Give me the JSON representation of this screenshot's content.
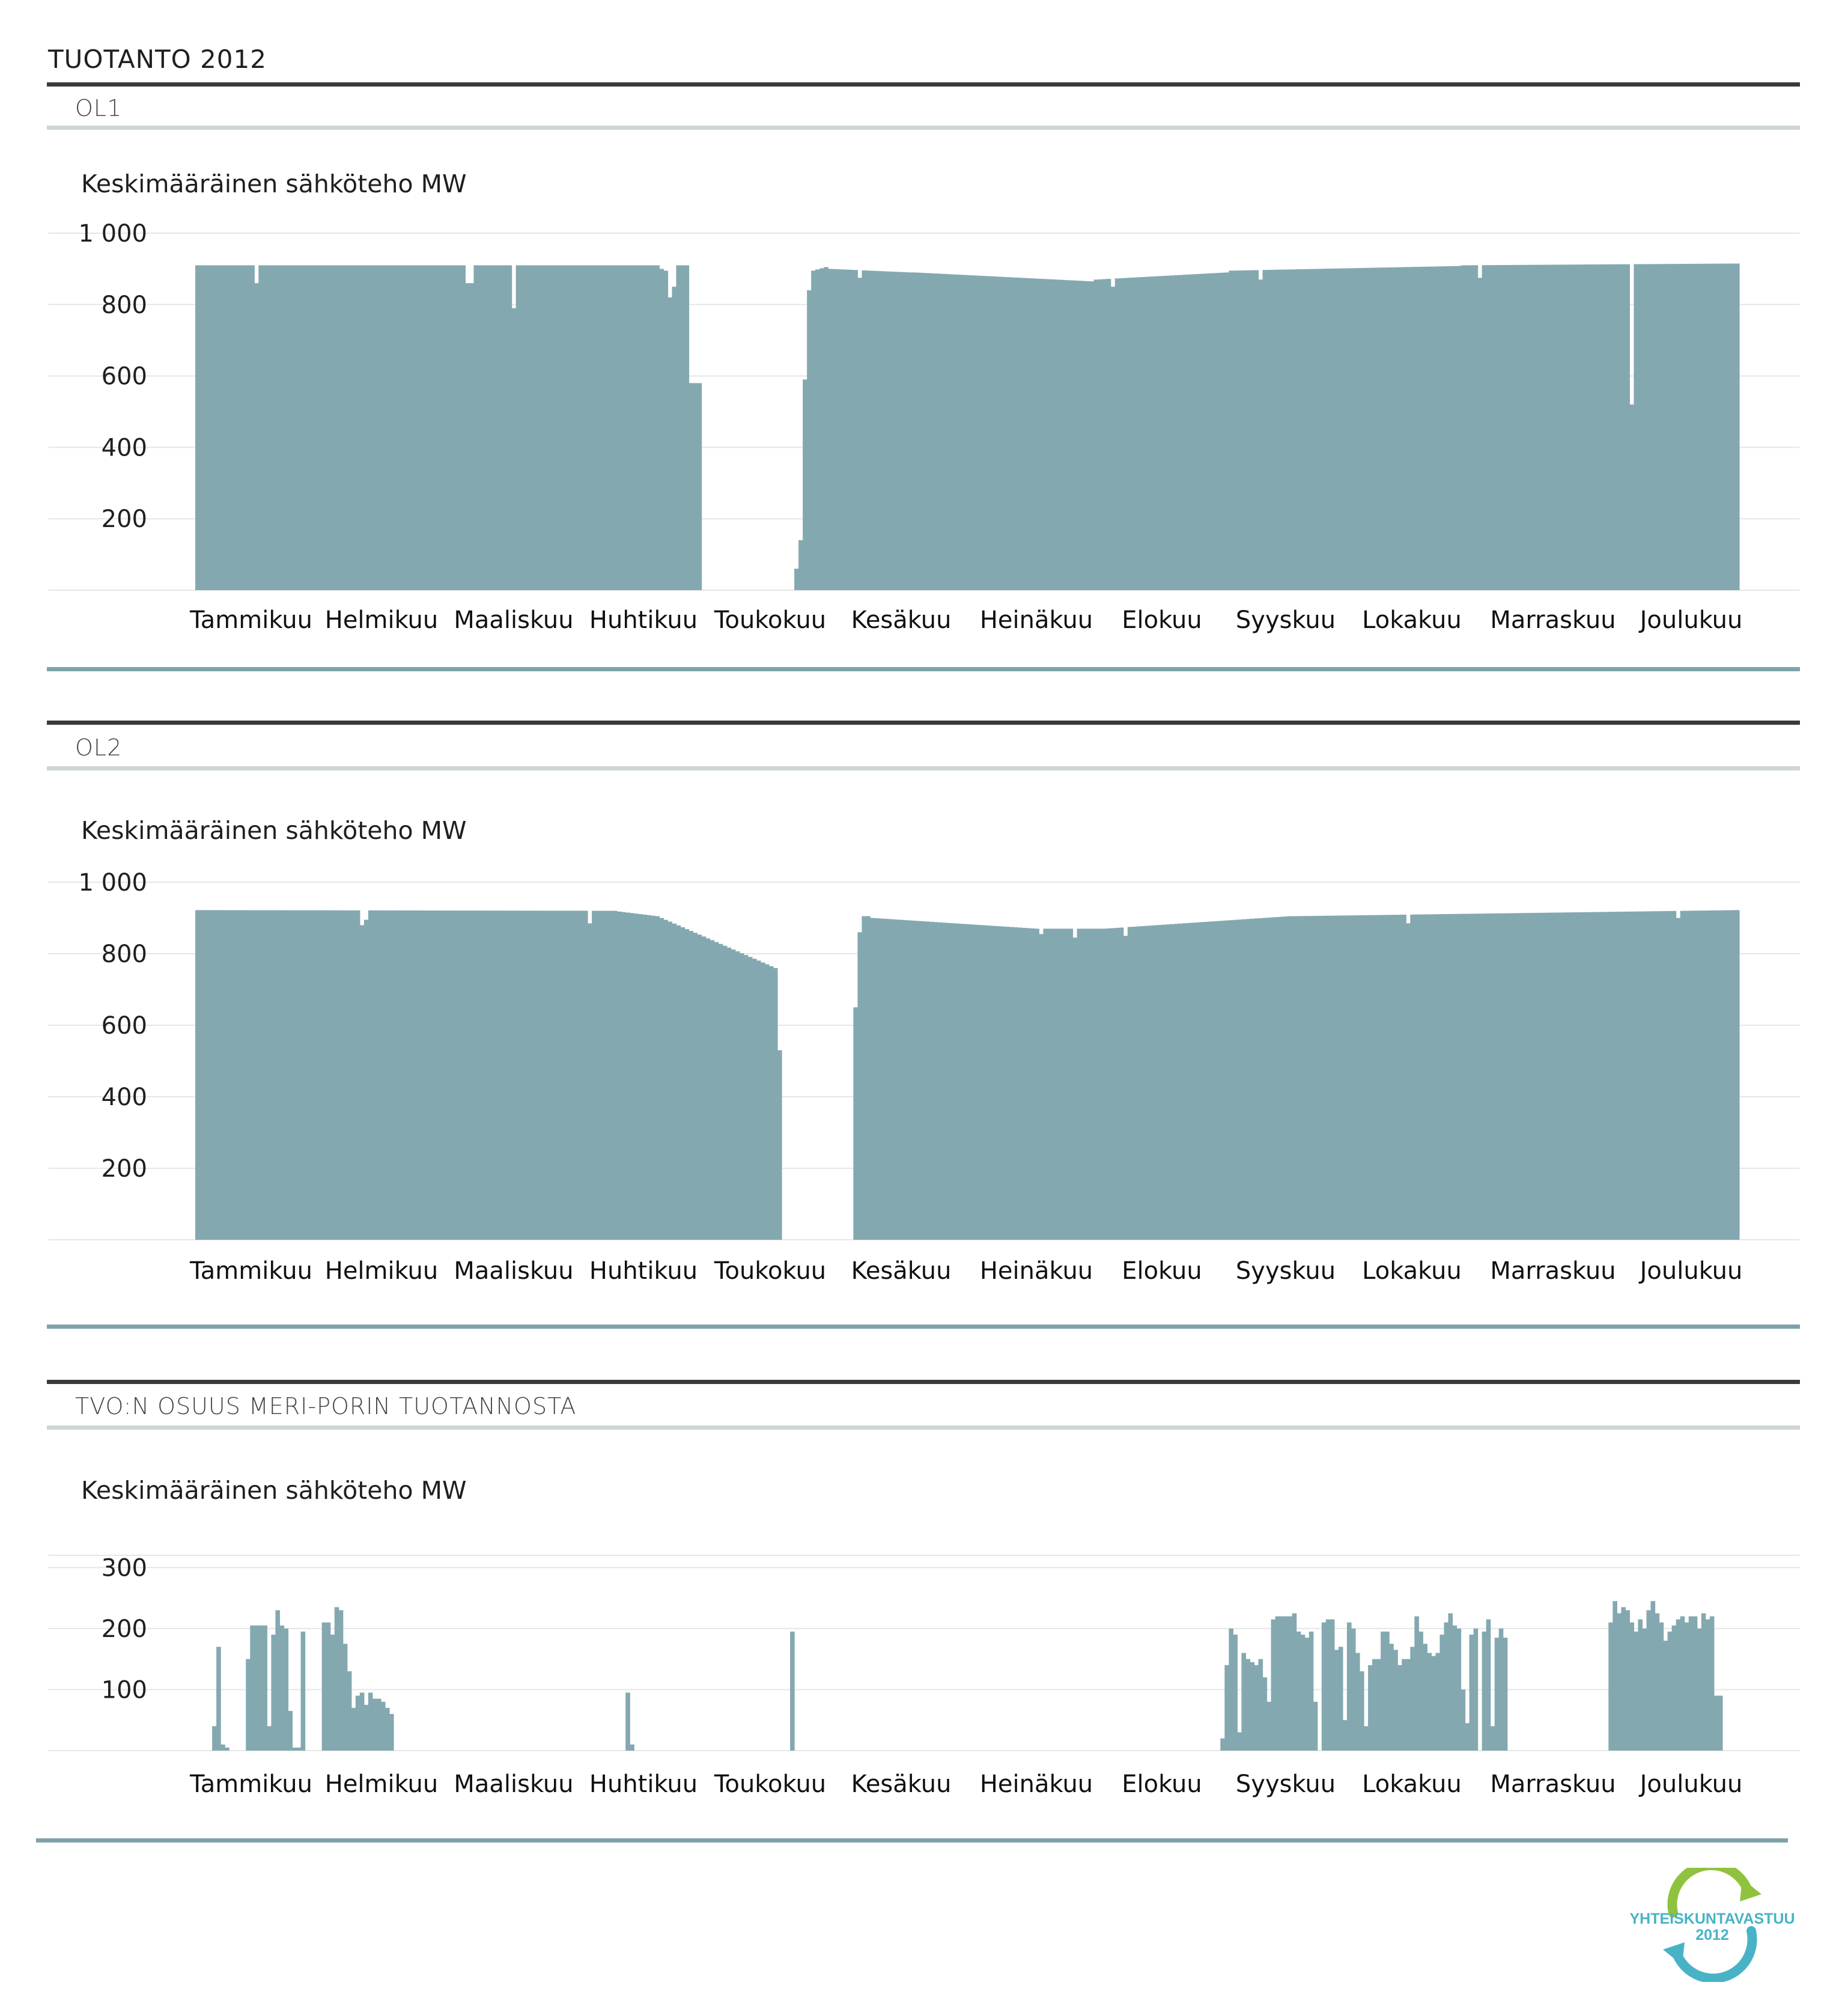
{
  "page": {
    "title": "TUOTANTO 2012"
  },
  "colors": {
    "bar": "#84a8b0",
    "grid": "#e4e7e6",
    "rule_dark": "#3a3a3a",
    "rule_green": "#cdd6d0",
    "rule_blue": "#7fa2aa",
    "logo_green": "#8fc23e",
    "logo_blue": "#48b3c6"
  },
  "logo": {
    "line1": "YHTEISKUNTAVASTUU",
    "line2": "2012"
  },
  "months": [
    "Tammikuu",
    "Helmikuu",
    "Maaliskuu",
    "Huhtikuu",
    "Toukokuu",
    "Kesäkuu",
    "Heinäkuu",
    "Elokuu",
    "Syyskuu",
    "Lokakuu",
    "Marraskuu",
    "Joulukuu"
  ],
  "panels": [
    {
      "label": "OL1",
      "ylabel": "Keskimääräinen sähköteho MW",
      "chart_data": {
        "type": "bar",
        "x_unit": "day of year 2012",
        "x_range": [
          1,
          366
        ],
        "ylim": [
          0,
          1000
        ],
        "yticks": [
          200,
          400,
          600,
          800,
          1000
        ],
        "ytick_labels": [
          "200",
          "400",
          "600",
          "800",
          "1 000"
        ],
        "grid": true,
        "series": [
          {
            "segments": [
              {
                "from": 1,
                "to": 120,
                "start": 910,
                "end": 910
              },
              {
                "from": 121,
                "to": 142,
                "start": 0,
                "end": 0
              },
              {
                "from": 143,
                "to": 143,
                "start": 60,
                "end": 60
              },
              {
                "from": 144,
                "to": 144,
                "start": 140,
                "end": 140
              },
              {
                "from": 145,
                "to": 145,
                "start": 590,
                "end": 590
              },
              {
                "from": 146,
                "to": 146,
                "start": 840,
                "end": 840
              },
              {
                "from": 147,
                "to": 150,
                "start": 895,
                "end": 905
              },
              {
                "from": 151,
                "to": 170,
                "start": 900,
                "end": 890
              },
              {
                "from": 171,
                "to": 213,
                "start": 890,
                "end": 865
              },
              {
                "from": 214,
                "to": 245,
                "start": 870,
                "end": 890
              },
              {
                "from": 246,
                "to": 300,
                "start": 895,
                "end": 908
              },
              {
                "from": 301,
                "to": 366,
                "start": 910,
                "end": 915
              }
            ],
            "dips": [
              {
                "day": 15,
                "value": 860
              },
              {
                "day": 65,
                "value": 860
              },
              {
                "day": 66,
                "value": 860
              },
              {
                "day": 76,
                "value": 790
              },
              {
                "day": 111,
                "value": 900
              },
              {
                "day": 112,
                "value": 895
              },
              {
                "day": 113,
                "value": 820
              },
              {
                "day": 114,
                "value": 850
              },
              {
                "day": 115,
                "value": 910
              },
              {
                "day": 116,
                "value": 910
              },
              {
                "day": 117,
                "value": 910
              },
              {
                "day": 118,
                "value": 580
              },
              {
                "day": 119,
                "value": 580
              },
              {
                "day": 120,
                "value": 580
              },
              {
                "day": 158,
                "value": 875
              },
              {
                "day": 218,
                "value": 850
              },
              {
                "day": 253,
                "value": 870
              },
              {
                "day": 305,
                "value": 875
              },
              {
                "day": 341,
                "value": 520
              }
            ]
          }
        ]
      }
    },
    {
      "label": "OL2",
      "ylabel": "Keskimääräinen sähköteho MW",
      "chart_data": {
        "type": "bar",
        "x_unit": "day of year 2012",
        "x_range": [
          1,
          366
        ],
        "ylim": [
          0,
          1000
        ],
        "yticks": [
          200,
          400,
          600,
          800,
          1000
        ],
        "ytick_labels": [
          "200",
          "400",
          "600",
          "800",
          "1 000"
        ],
        "grid": true,
        "series": [
          {
            "segments": [
              {
                "from": 1,
                "to": 100,
                "start": 922,
                "end": 920
              },
              {
                "from": 101,
                "to": 110,
                "start": 918,
                "end": 905
              },
              {
                "from": 111,
                "to": 138,
                "start": 900,
                "end": 760
              },
              {
                "from": 139,
                "to": 139,
                "start": 530,
                "end": 530
              },
              {
                "from": 140,
                "to": 156,
                "start": 0,
                "end": 0
              },
              {
                "from": 157,
                "to": 157,
                "start": 650,
                "end": 650
              },
              {
                "from": 158,
                "to": 158,
                "start": 860,
                "end": 860
              },
              {
                "from": 159,
                "to": 160,
                "start": 905,
                "end": 905
              },
              {
                "from": 161,
                "to": 200,
                "start": 900,
                "end": 870
              },
              {
                "from": 201,
                "to": 215,
                "start": 870,
                "end": 870
              },
              {
                "from": 216,
                "to": 260,
                "start": 870,
                "end": 905
              },
              {
                "from": 261,
                "to": 366,
                "start": 905,
                "end": 922
              }
            ],
            "dips": [
              {
                "day": 40,
                "value": 880
              },
              {
                "day": 41,
                "value": 895
              },
              {
                "day": 94,
                "value": 885
              },
              {
                "day": 201,
                "value": 855
              },
              {
                "day": 209,
                "value": 845
              },
              {
                "day": 221,
                "value": 850
              },
              {
                "day": 288,
                "value": 885
              },
              {
                "day": 352,
                "value": 900
              }
            ]
          }
        ]
      }
    },
    {
      "label": "TVO:N OSUUS MERI-PORIN TUOTANNOSTA",
      "ylabel": "Keskimääräinen sähköteho MW",
      "chart_data": {
        "type": "bar",
        "x_unit": "day of year 2012",
        "x_range": [
          1,
          366
        ],
        "ylim": [
          0,
          320
        ],
        "yticks": [
          100,
          200,
          300
        ],
        "ytick_labels": [
          "100",
          "200",
          "300"
        ],
        "grid": true,
        "series": [
          {
            "days": [
              5,
              6,
              7,
              8,
              13,
              14,
              15,
              16,
              17,
              18,
              19,
              20,
              21,
              22,
              23,
              24,
              25,
              26,
              31,
              32,
              33,
              34,
              35,
              36,
              37,
              38,
              39,
              40,
              41,
              42,
              43,
              44,
              45,
              46,
              47,
              103,
              104,
              142,
              244,
              245,
              246,
              247,
              248,
              249,
              250,
              251,
              252,
              253,
              254,
              255,
              256,
              257,
              258,
              259,
              260,
              261,
              262,
              263,
              264,
              265,
              266,
              267,
              268,
              269,
              270,
              271,
              272,
              273,
              274,
              275,
              276,
              277,
              278,
              279,
              280,
              281,
              282,
              283,
              284,
              285,
              286,
              287,
              288,
              289,
              290,
              291,
              292,
              293,
              294,
              295,
              296,
              297,
              298,
              299,
              300,
              301,
              302,
              303,
              304,
              305,
              306,
              307,
              308,
              309,
              310,
              311,
              336,
              337,
              338,
              339,
              340,
              341,
              342,
              343,
              344,
              345,
              346,
              347,
              348,
              349,
              350,
              351,
              352,
              353,
              354,
              355,
              356,
              357,
              358,
              359,
              360,
              361,
              362
            ],
            "values": [
              40,
              170,
              10,
              5,
              150,
              205,
              205,
              205,
              205,
              40,
              190,
              230,
              205,
              200,
              65,
              5,
              5,
              195,
              210,
              210,
              190,
              235,
              230,
              175,
              130,
              70,
              90,
              95,
              75,
              95,
              85,
              85,
              80,
              70,
              60,
              95,
              10,
              195,
              20,
              140,
              200,
              190,
              30,
              160,
              150,
              145,
              140,
              150,
              120,
              80,
              215,
              220,
              220,
              220,
              220,
              225,
              195,
              190,
              185,
              195,
              80,
              0,
              210,
              215,
              215,
              165,
              170,
              50,
              210,
              200,
              160,
              130,
              40,
              140,
              150,
              150,
              195,
              195,
              175,
              165,
              140,
              150,
              150,
              170,
              220,
              195,
              175,
              160,
              155,
              160,
              190,
              210,
              225,
              205,
              200,
              100,
              45,
              190,
              200,
              0,
              195,
              215,
              40,
              185,
              200,
              185,
              210,
              245,
              225,
              235,
              230,
              210,
              195,
              215,
              200,
              230,
              245,
              225,
              210,
              180,
              195,
              205,
              215,
              220,
              210,
              220,
              220,
              200,
              225,
              215,
              220,
              90,
              90
            ]
          }
        ]
      }
    }
  ]
}
